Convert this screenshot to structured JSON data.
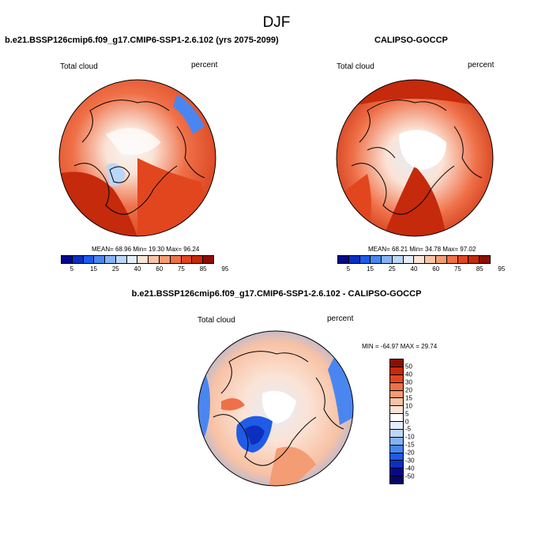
{
  "page_title": "DJF",
  "panels": [
    {
      "title": "b.e21.BSSP126cmip6.f09_g17.CMIP6-SSP1-2.6.102 (yrs 2075-2099)",
      "left_label": "Total cloud",
      "right_label": "percent",
      "stats": "MEAN= 68.96  Min= 19.30  Max= 96.24"
    },
    {
      "title": "CALIPSO-GOCCP",
      "left_label": "Total cloud",
      "right_label": "percent",
      "stats": "MEAN= 68.21  Min= 34.78  Max= 97.02"
    },
    {
      "title": "b.e21.BSSP126cmip6.f09_g17.CMIP6-SSP1-2.6.102 - CALIPSO-GOCCP",
      "left_label": "Total cloud",
      "right_label": "percent",
      "stats": "MIN = -64.97 MAX =  29.74"
    }
  ],
  "colorbar_abs": {
    "ticks": [
      "5",
      "15",
      "25",
      "40",
      "60",
      "75",
      "85",
      "95"
    ],
    "colors": [
      "#08088a",
      "#0d2fc0",
      "#1f5ce6",
      "#4a86f0",
      "#86b2f4",
      "#bcd6f7",
      "#e4edf9",
      "#fbe3d6",
      "#f8c2a5",
      "#f49c74",
      "#ef7048",
      "#e2461f",
      "#c42a0b",
      "#8c0e02"
    ]
  },
  "colorbar_diff": {
    "ticks": [
      "50",
      "40",
      "30",
      "20",
      "15",
      "10",
      "5",
      "0",
      "-5",
      "-10",
      "-15",
      "-20",
      "-30",
      "-40",
      "-50"
    ],
    "colors": [
      "#8c0e02",
      "#c42a0b",
      "#e2461f",
      "#ef7048",
      "#f49c74",
      "#f8c2a5",
      "#fbe3d6",
      "#ffffff",
      "#e4edf9",
      "#bcd6f7",
      "#86b2f4",
      "#4a86f0",
      "#1f5ce6",
      "#0d2fc0",
      "#08088a",
      "#060666"
    ]
  }
}
